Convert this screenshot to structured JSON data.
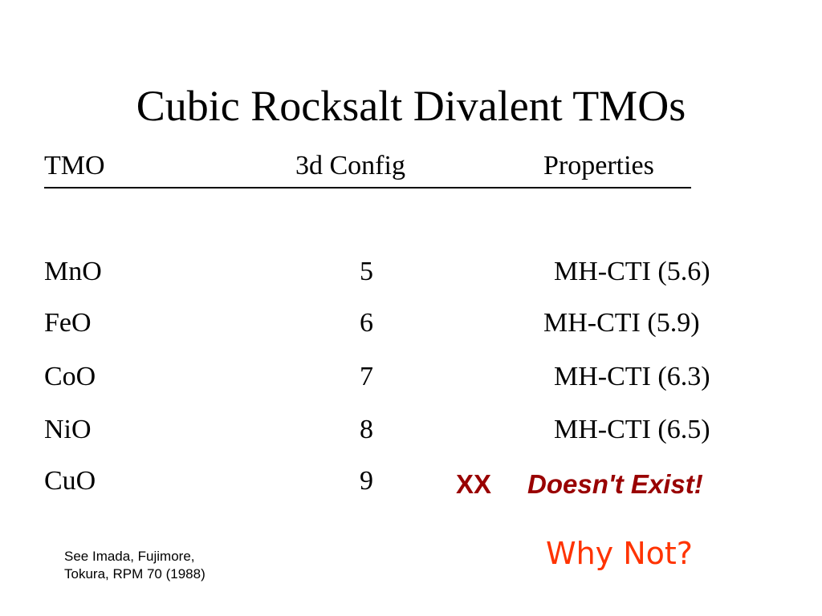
{
  "slide": {
    "title": "Cubic Rocksalt Divalent TMOs",
    "headers": {
      "tmo": "TMO",
      "config": "3d Config",
      "properties": "Properties"
    },
    "rows": [
      {
        "tmo": "MnO",
        "config": "5",
        "properties": "MH-CTI (5.6)"
      },
      {
        "tmo": "FeO",
        "config": "6",
        "properties": "MH-CTI (5.9)"
      },
      {
        "tmo": "CoO",
        "config": "7",
        "properties": "MH-CTI (6.3)"
      },
      {
        "tmo": "NiO",
        "config": "8",
        "properties": "MH-CTI (6.5)"
      },
      {
        "tmo": "CuO",
        "config": "9",
        "xx": "XX",
        "note": "Doesn't Exist!"
      }
    ],
    "question": "Why Not?",
    "citation": {
      "line1": "See Imada, Fujimore,",
      "line2": "Tokura, RPM 70 (1988)"
    },
    "colors": {
      "text": "#000000",
      "dark_red": "#990000",
      "orange_red": "#ff3300"
    }
  }
}
